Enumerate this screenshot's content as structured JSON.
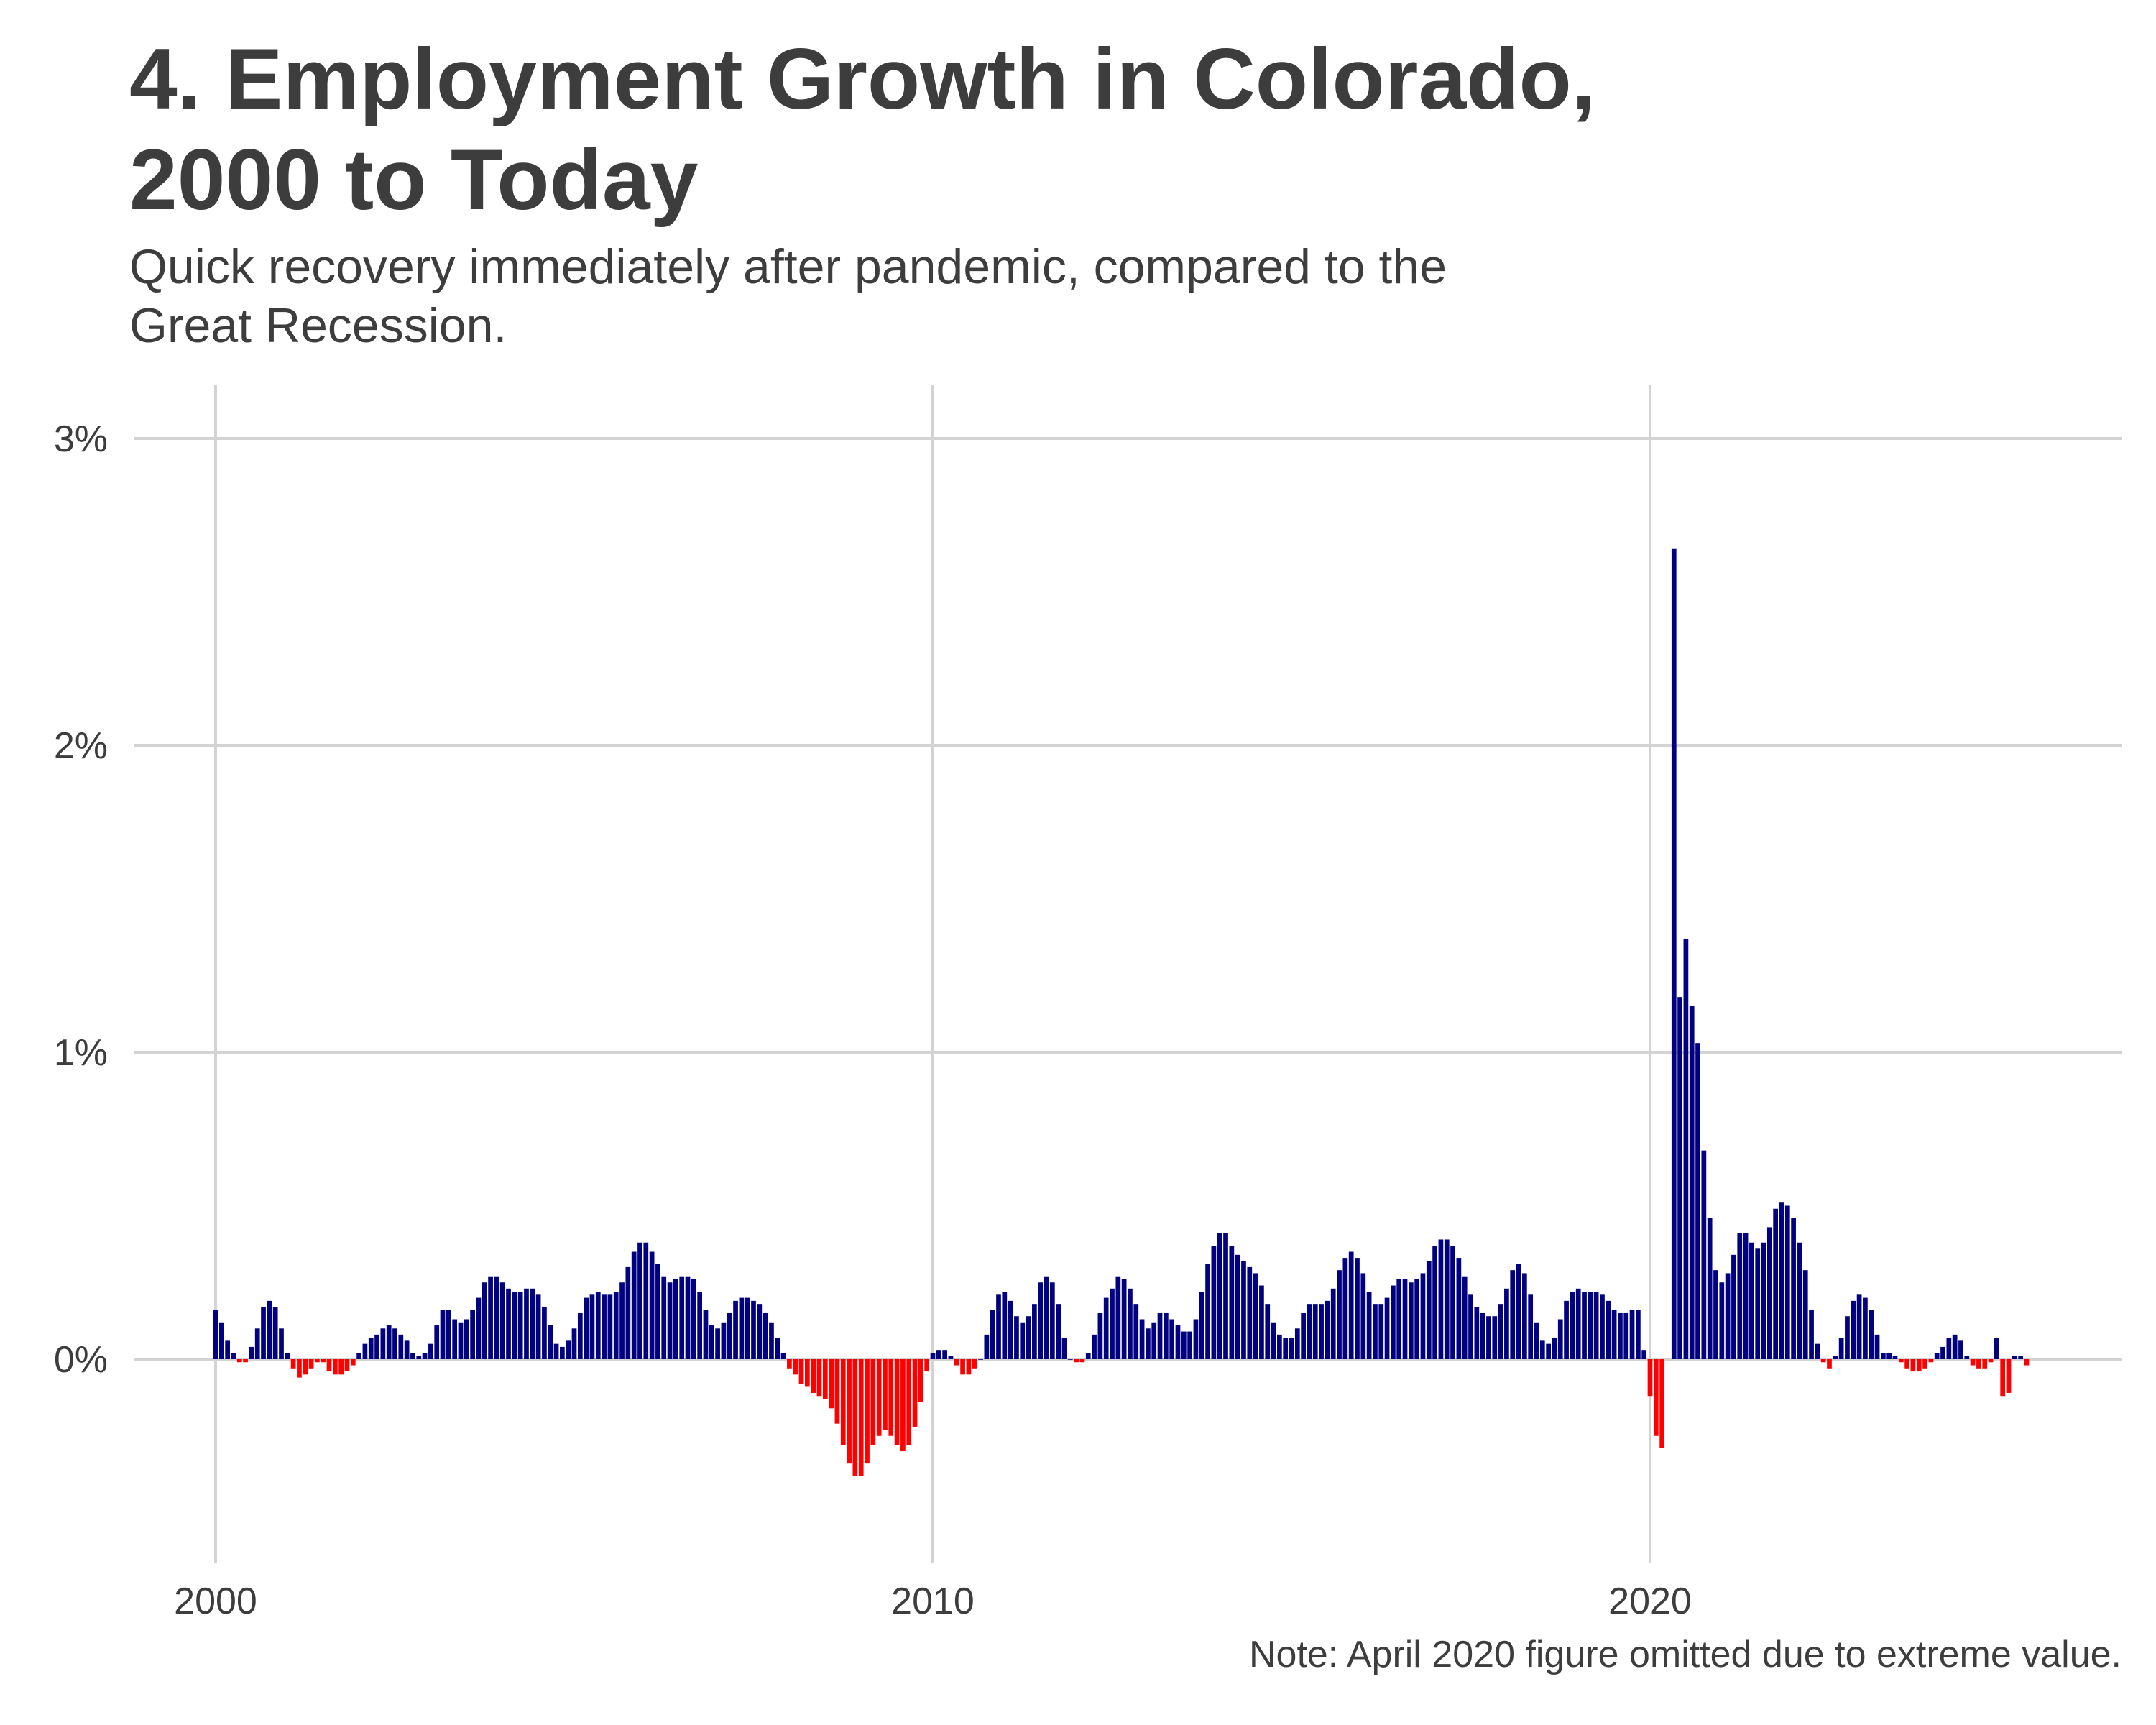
{
  "title_line1": "4. Employment Growth in Colorado,",
  "title_line2": "2000 to Today",
  "subtitle_line1": "Quick recovery immediately after pandemic, compared to the",
  "subtitle_line2": "Great Recession.",
  "note": "Note: April 2020 figure omitted due to extreme value.",
  "colors": {
    "positive": "#000080",
    "negative": "#ff0000",
    "grid": "#d3d3d3",
    "text": "#3d3d3d"
  },
  "chart_data": {
    "type": "bar",
    "title": "4. Employment Growth in Colorado, 2000 to Today",
    "subtitle": "Quick recovery immediately after pandemic, compared to the Great Recession.",
    "xlabel": "",
    "ylabel": "",
    "x_start": "2000-01",
    "frequency": "monthly",
    "x_ticks": [
      "2000",
      "2010",
      "2020"
    ],
    "y_ticks": [
      "0%",
      "1%",
      "2%",
      "3%"
    ],
    "ylim": [
      -0.65,
      3.2
    ],
    "xlim": [
      "1999-02",
      "2026-09"
    ],
    "grid": true,
    "legend": "none",
    "omitted": [
      "2020-04"
    ],
    "values": [
      0.16,
      0.12,
      0.06,
      0.02,
      -0.01,
      -0.01,
      0.04,
      0.1,
      0.17,
      0.19,
      0.17,
      0.1,
      0.02,
      -0.03,
      -0.06,
      -0.05,
      -0.03,
      -0.01,
      -0.01,
      -0.04,
      -0.05,
      -0.05,
      -0.04,
      -0.02,
      0.02,
      0.05,
      0.07,
      0.08,
      0.1,
      0.11,
      0.1,
      0.08,
      0.06,
      0.02,
      0.01,
      0.02,
      0.05,
      0.11,
      0.16,
      0.16,
      0.13,
      0.12,
      0.13,
      0.16,
      0.2,
      0.25,
      0.27,
      0.27,
      0.25,
      0.23,
      0.22,
      0.22,
      0.23,
      0.23,
      0.21,
      0.17,
      0.11,
      0.05,
      0.04,
      0.06,
      0.1,
      0.15,
      0.2,
      0.21,
      0.22,
      0.21,
      0.21,
      0.22,
      0.25,
      0.3,
      0.35,
      0.38,
      0.38,
      0.35,
      0.31,
      0.27,
      0.25,
      0.26,
      0.27,
      0.27,
      0.26,
      0.22,
      0.16,
      0.11,
      0.1,
      0.12,
      0.15,
      0.19,
      0.2,
      0.2,
      0.19,
      0.18,
      0.15,
      0.12,
      0.07,
      0.02,
      -0.03,
      -0.05,
      -0.08,
      -0.09,
      -0.11,
      -0.12,
      -0.13,
      -0.16,
      -0.21,
      -0.28,
      -0.34,
      -0.38,
      -0.38,
      -0.34,
      -0.28,
      -0.25,
      -0.23,
      -0.25,
      -0.28,
      -0.3,
      -0.28,
      -0.22,
      -0.14,
      -0.04,
      0.02,
      0.03,
      0.03,
      0.01,
      -0.02,
      -0.05,
      -0.05,
      -0.03,
      0.0,
      0.08,
      0.16,
      0.21,
      0.22,
      0.19,
      0.14,
      0.12,
      0.14,
      0.18,
      0.25,
      0.27,
      0.25,
      0.18,
      0.07,
      0.0,
      -0.01,
      -0.01,
      0.02,
      0.08,
      0.15,
      0.2,
      0.23,
      0.27,
      0.26,
      0.23,
      0.18,
      0.13,
      0.1,
      0.12,
      0.15,
      0.15,
      0.13,
      0.11,
      0.09,
      0.09,
      0.13,
      0.22,
      0.31,
      0.37,
      0.41,
      0.41,
      0.37,
      0.34,
      0.32,
      0.3,
      0.28,
      0.24,
      0.18,
      0.12,
      0.08,
      0.07,
      0.07,
      0.1,
      0.15,
      0.18,
      0.18,
      0.18,
      0.19,
      0.23,
      0.29,
      0.33,
      0.35,
      0.33,
      0.28,
      0.22,
      0.18,
      0.18,
      0.2,
      0.24,
      0.26,
      0.26,
      0.25,
      0.26,
      0.28,
      0.32,
      0.37,
      0.39,
      0.39,
      0.37,
      0.33,
      0.27,
      0.21,
      0.17,
      0.15,
      0.14,
      0.14,
      0.18,
      0.23,
      0.29,
      0.31,
      0.28,
      0.21,
      0.12,
      0.06,
      0.05,
      0.07,
      0.13,
      0.19,
      0.22,
      0.23,
      0.22,
      0.22,
      0.22,
      0.21,
      0.19,
      0.16,
      0.15,
      0.15,
      0.16,
      0.16,
      0.03,
      -0.12,
      -0.25,
      -0.29,
      null,
      2.64,
      1.18,
      1.37,
      1.15,
      1.03,
      0.68,
      0.46,
      0.29,
      0.25,
      0.28,
      0.34,
      0.41,
      0.41,
      0.38,
      0.36,
      0.38,
      0.43,
      0.49,
      0.51,
      0.5,
      0.46,
      0.38,
      0.29,
      0.16,
      0.05,
      -0.01,
      -0.03,
      0.01,
      0.07,
      0.14,
      0.19,
      0.21,
      0.2,
      0.16,
      0.08,
      0.02,
      0.02,
      0.01,
      -0.01,
      -0.03,
      -0.04,
      -0.04,
      -0.03,
      -0.01,
      0.02,
      0.04,
      0.07,
      0.08,
      0.06,
      0.01,
      -0.02,
      -0.03,
      -0.03,
      -0.01,
      0.07,
      -0.12,
      -0.11,
      0.01,
      0.01,
      -0.02
    ]
  }
}
